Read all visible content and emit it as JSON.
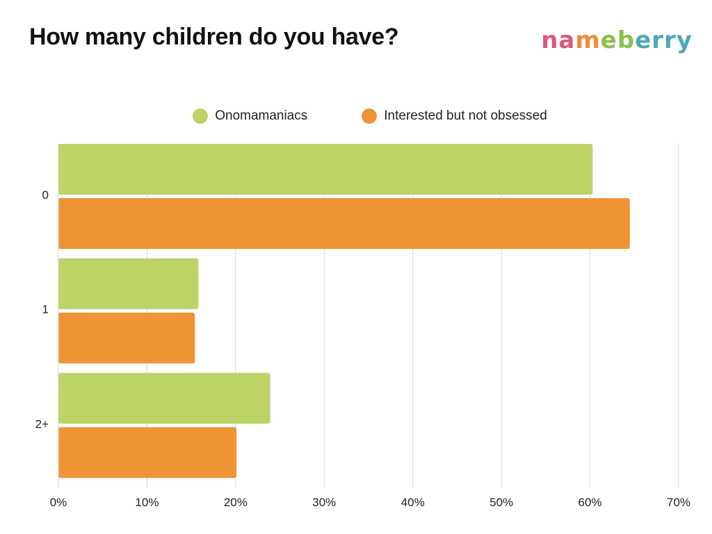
{
  "title": "How many children do you have?",
  "logo": {
    "text": "nameberry",
    "letter_colors": [
      "#e0567a",
      "#e0567a",
      "#f08a3c",
      "#8cbf4a",
      "#8cbf4a",
      "#4fa7b4",
      "#4fa7b4",
      "#4fa7b4",
      "#4fa7b4"
    ]
  },
  "chart_data": {
    "type": "bar",
    "orientation": "horizontal",
    "categories": [
      "0",
      "1",
      "2+"
    ],
    "series": [
      {
        "name": "Onomamaniacs",
        "color": "#bcd366",
        "values": [
          60.3,
          15.8,
          23.9
        ]
      },
      {
        "name": "Interested but not obsessed",
        "color": "#ef9434",
        "values": [
          64.5,
          15.4,
          20.1
        ]
      }
    ],
    "xlim": [
      0,
      70
    ],
    "xticks": [
      0,
      10,
      20,
      30,
      40,
      50,
      60,
      70
    ],
    "xtick_labels": [
      "0%",
      "10%",
      "20%",
      "30%",
      "40%",
      "50%",
      "60%",
      "70%"
    ],
    "grid": true,
    "legend": "top-center"
  }
}
